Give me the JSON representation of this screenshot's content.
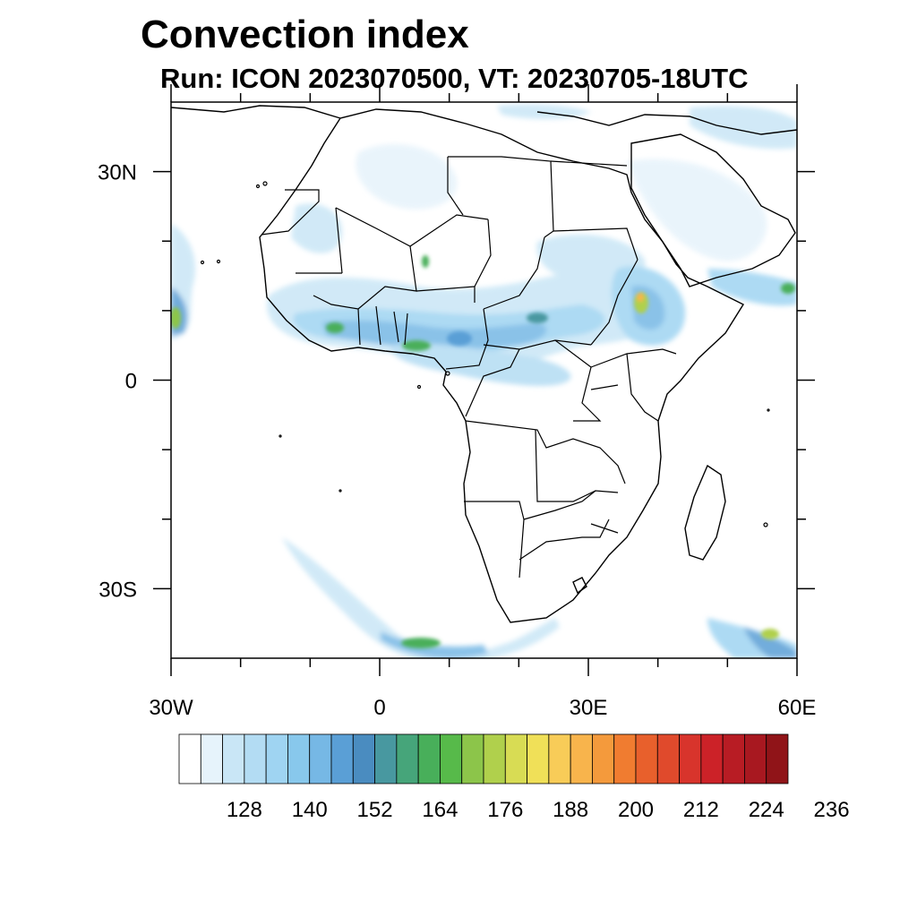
{
  "title": "Convection index",
  "subtitle": "Run: ICON 2023070500,  VT: 20230705-18UTC",
  "map": {
    "projection": "equirectangular",
    "lon_range": [
      -30,
      60
    ],
    "lat_range": [
      -40,
      40
    ],
    "lat_labels": [
      {
        "lat": 30,
        "text": "30N"
      },
      {
        "lat": 0,
        "text": "0"
      },
      {
        "lat": -30,
        "text": "30S"
      }
    ],
    "lon_labels": [
      {
        "lon": -30,
        "text": "30W"
      },
      {
        "lon": 0,
        "text": "0"
      },
      {
        "lon": 30,
        "text": "30E"
      },
      {
        "lon": 60,
        "text": "60E"
      }
    ]
  },
  "colorbar": {
    "labels": [
      "128",
      "140",
      "152",
      "164",
      "176",
      "188",
      "200",
      "212",
      "224",
      "236"
    ],
    "colors": [
      "#ffffff",
      "#e6f3fb",
      "#c9e6f6",
      "#b3dcf3",
      "#9fd4f2",
      "#88c8ec",
      "#76b8e5",
      "#5a9fd6",
      "#4a8cc0",
      "#4898a0",
      "#46a57a",
      "#48af5a",
      "#57ba4a",
      "#8cc54a",
      "#b0d04c",
      "#d8dc54",
      "#f0e058",
      "#f8cc58",
      "#f8b44c",
      "#f49a3c",
      "#f07c30",
      "#e8602c",
      "#e04a2c",
      "#d8342c",
      "#cc2228",
      "#b81c24",
      "#a81820",
      "#901418"
    ]
  }
}
